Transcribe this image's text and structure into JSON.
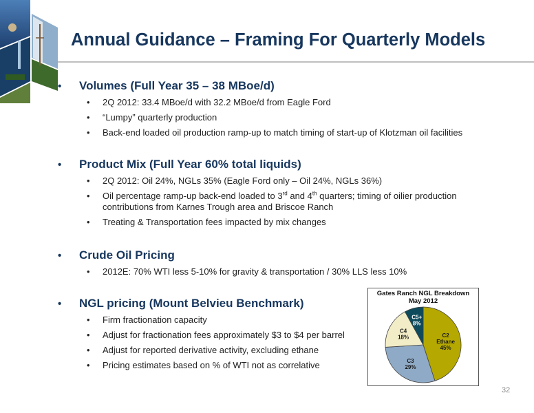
{
  "title": "Annual Guidance – Framing For Quarterly Models",
  "bullet_char": "•",
  "sub_bullet_char": "•",
  "sections": [
    {
      "heading": "Volumes (Full Year 35 – 38 MBoe/d)",
      "items": [
        "2Q 2012: 33.4 MBoe/d with 32.2 MBoe/d from Eagle Ford",
        "“Lumpy” quarterly production",
        "Back-end loaded oil production ramp-up to match timing of start-up of Klotzman oil facilities"
      ]
    },
    {
      "heading": "Product Mix (Full Year 60% total liquids)",
      "items": [
        "2Q 2012: Oil 24%, NGLs 35% (Eagle Ford only – Oil 24%, NGLs 36%)",
        {
          "a": "Oil percentage ramp-up back-end loaded to 3",
          "sup1": "rd",
          "b": " and 4",
          "sup2": "th",
          "c": " quarters; timing of oilier production",
          "d": "contributions from Karnes Trough area and Briscoe Ranch"
        },
        "Treating & Transportation fees impacted by mix changes"
      ]
    },
    {
      "heading": "Crude Oil Pricing",
      "items": [
        "2012E:  70% WTI less 5-10% for gravity & transportation / 30% LLS less 10%"
      ]
    },
    {
      "heading": "NGL pricing (Mount Belvieu Benchmark)",
      "items": [
        "Firm fractionation capacity",
        "Adjust for fractionation fees approximately $3 to $4 per barrel",
        "Adjust for reported derivative activity, excluding ethane",
        "Pricing estimates based on % of WTI not as correlative"
      ]
    }
  ],
  "pie": {
    "title_line1": "Gates Ranch NGL Breakdown",
    "title_line2": "May 2012",
    "slices": [
      {
        "name": "C2",
        "sub": "Ethane",
        "label": "45%",
        "value": 45,
        "color": "#b5a800"
      },
      {
        "name": "C3",
        "sub": "",
        "label": "29%",
        "value": 29,
        "color": "#8faac6"
      },
      {
        "name": "C4",
        "sub": "",
        "label": "18%",
        "value": 18,
        "color": "#f2edc6"
      },
      {
        "name": "C5+",
        "sub": "",
        "label": "8%",
        "value": 8,
        "color": "#0d4a5c"
      }
    ]
  },
  "page_number": "32"
}
